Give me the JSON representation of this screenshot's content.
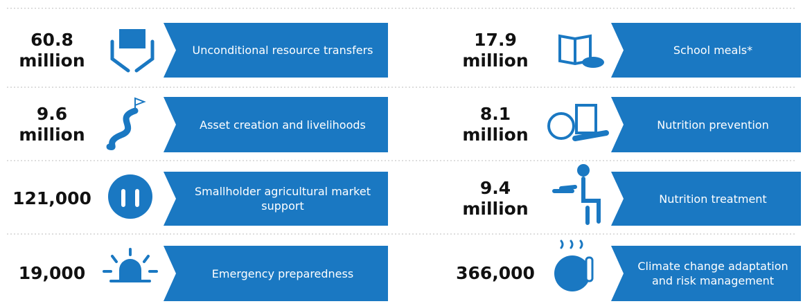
{
  "left": [
    {
      "value": "60.8 million",
      "label": "Unconditional resource transfers"
    },
    {
      "value": "9.6 million",
      "label": "Asset creation and livelihoods"
    },
    {
      "value": "121,000",
      "label": "Smallholder agricultural market support"
    },
    {
      "value": "19,000",
      "label": "Emergency preparedness"
    }
  ],
  "right": [
    {
      "value": "17.9 million",
      "label": "School meals*"
    },
    {
      "value": "8.1 million",
      "label": "Nutrition prevention"
    },
    {
      "value": "9.4 million",
      "label": "Nutrition treatment"
    },
    {
      "value": "366,000",
      "label": "Climate change adaptation and risk management"
    }
  ]
}
